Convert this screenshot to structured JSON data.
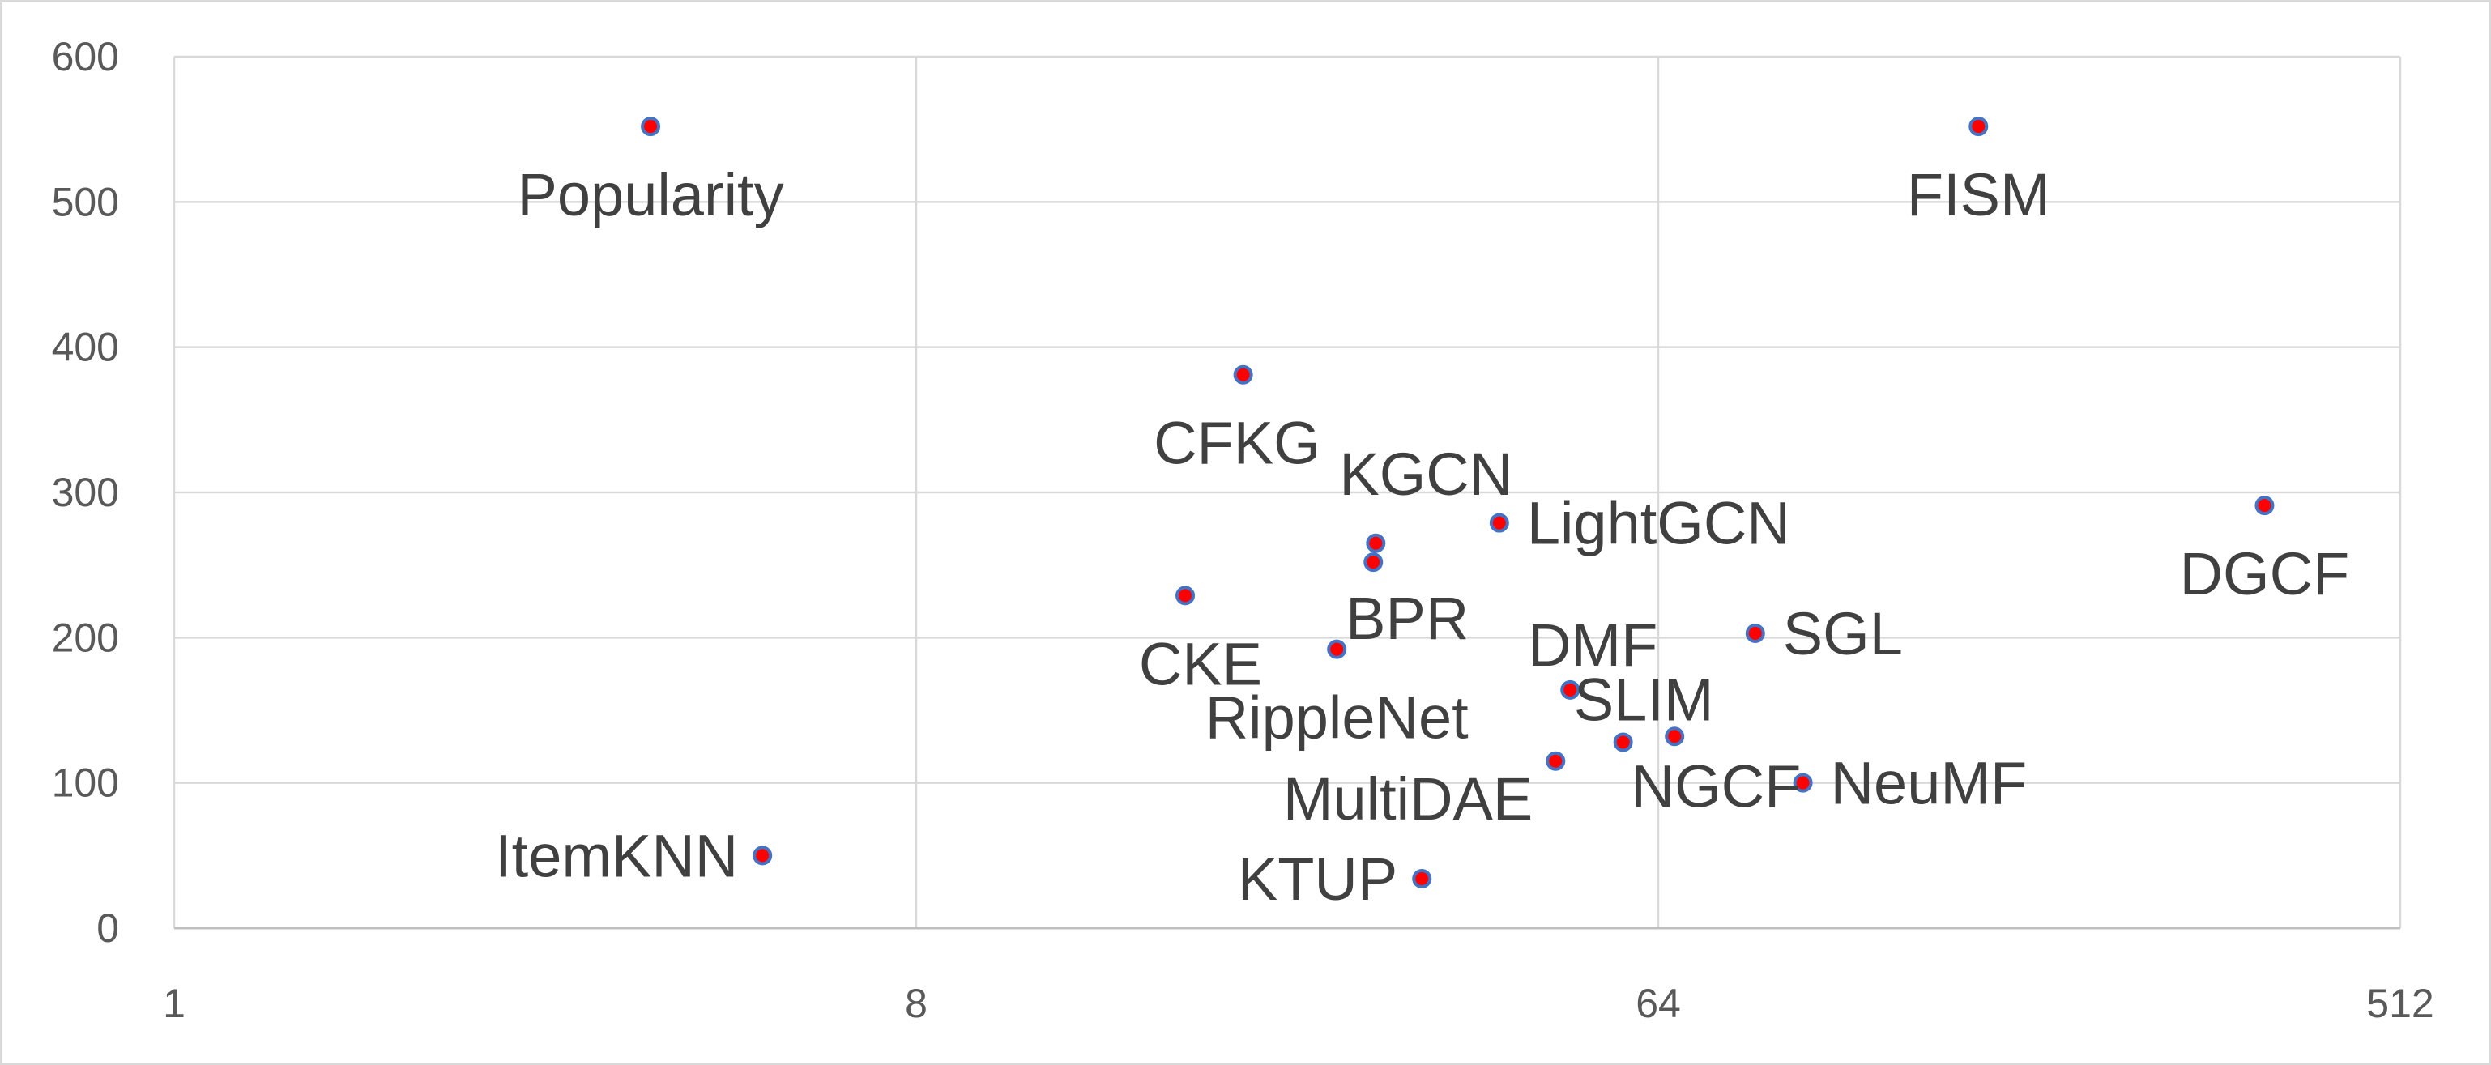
{
  "chart_data": {
    "type": "scatter",
    "title": "",
    "xlabel": "",
    "ylabel": "",
    "x_scale": "log2",
    "xlim": [
      1,
      512
    ],
    "ylim": [
      0,
      600
    ],
    "x_ticks": [
      1,
      8,
      64,
      512
    ],
    "x_tick_labels": [
      "1",
      "8",
      "64",
      "512"
    ],
    "y_ticks": [
      0,
      100,
      200,
      300,
      400,
      500,
      600
    ],
    "y_tick_labels": [
      "0",
      "100",
      "200",
      "300",
      "400",
      "500",
      "600"
    ],
    "grid": true,
    "legend": "none",
    "point_fill": "#ff0000",
    "point_stroke": "#4472c4",
    "points": [
      {
        "label": "Popularity",
        "x": 3.8,
        "y": 552,
        "label_pos": "below"
      },
      {
        "label": "FISM",
        "x": 157,
        "y": 552,
        "label_pos": "below"
      },
      {
        "label": "CFKG",
        "x": 20,
        "y": 381,
        "label_pos": "below-left"
      },
      {
        "label": "KGCN",
        "x": 29,
        "y": 265,
        "label_pos": "above-right"
      },
      {
        "label": "LightGCN",
        "x": 41,
        "y": 279,
        "label_pos": "right"
      },
      {
        "label": "DGCF",
        "x": 350,
        "y": 291,
        "label_pos": "below"
      },
      {
        "label": "BPR",
        "x": 28.8,
        "y": 252,
        "label_pos": "below"
      },
      {
        "label": "CKE",
        "x": 17,
        "y": 229,
        "label_pos": "below-left"
      },
      {
        "label": "SGL",
        "x": 84,
        "y": 203,
        "label_pos": "right"
      },
      {
        "label": "RippleNet",
        "x": 26,
        "y": 192,
        "label_pos": "below"
      },
      {
        "label": "DMF",
        "x": 50,
        "y": 164,
        "label_pos": "above"
      },
      {
        "label": "SLIM",
        "x": 67,
        "y": 132,
        "label_pos": "above"
      },
      {
        "label": "NGCF",
        "x": 58,
        "y": 128,
        "label_pos": "below-right"
      },
      {
        "label": "MultiDAE",
        "x": 48,
        "y": 115,
        "label_pos": "below-left"
      },
      {
        "label": "NeuMF",
        "x": 96,
        "y": 100,
        "label_pos": "right"
      },
      {
        "label": "ItemKNN",
        "x": 5.2,
        "y": 50,
        "label_pos": "left"
      },
      {
        "label": "KTUP",
        "x": 33,
        "y": 34,
        "label_pos": "left"
      }
    ]
  }
}
